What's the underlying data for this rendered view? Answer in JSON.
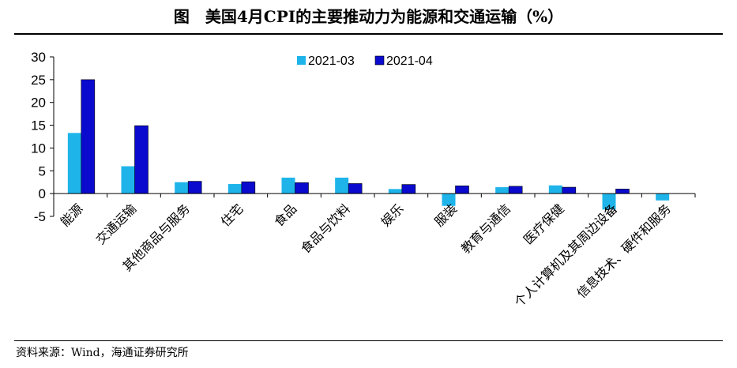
{
  "title": "图　美国4月CPI的主要推动力为能源和交通运输（%）",
  "source": "资料来源：Wind，海通证券研究所",
  "colors": {
    "s1": "#1EB4EA",
    "s2": "#0A0ACF",
    "axis": "#000000"
  },
  "chart_data": {
    "type": "bar",
    "categories": [
      "能源",
      "交通运输",
      "其他商品与服务",
      "住宅",
      "食品",
      "食品与饮料",
      "娱乐",
      "服装",
      "教育与通信",
      "医疗保健",
      "个人计算机及其周边设备",
      "信息技术、硬件和服务"
    ],
    "series": [
      {
        "name": "2021-03",
        "values": [
          13.3,
          6.0,
          2.5,
          2.1,
          3.5,
          3.5,
          1.0,
          -2.7,
          1.4,
          1.8,
          -3.5,
          -1.5
        ]
      },
      {
        "name": "2021-04",
        "values": [
          25.0,
          14.9,
          2.7,
          2.6,
          2.4,
          2.2,
          2.0,
          1.7,
          1.6,
          1.4,
          1.0,
          0.0
        ]
      }
    ],
    "ylim": [
      -5,
      30
    ],
    "yticks": [
      30,
      25,
      20,
      15,
      10,
      5,
      0,
      -5
    ],
    "legend_position": "top-center",
    "grid": false
  }
}
